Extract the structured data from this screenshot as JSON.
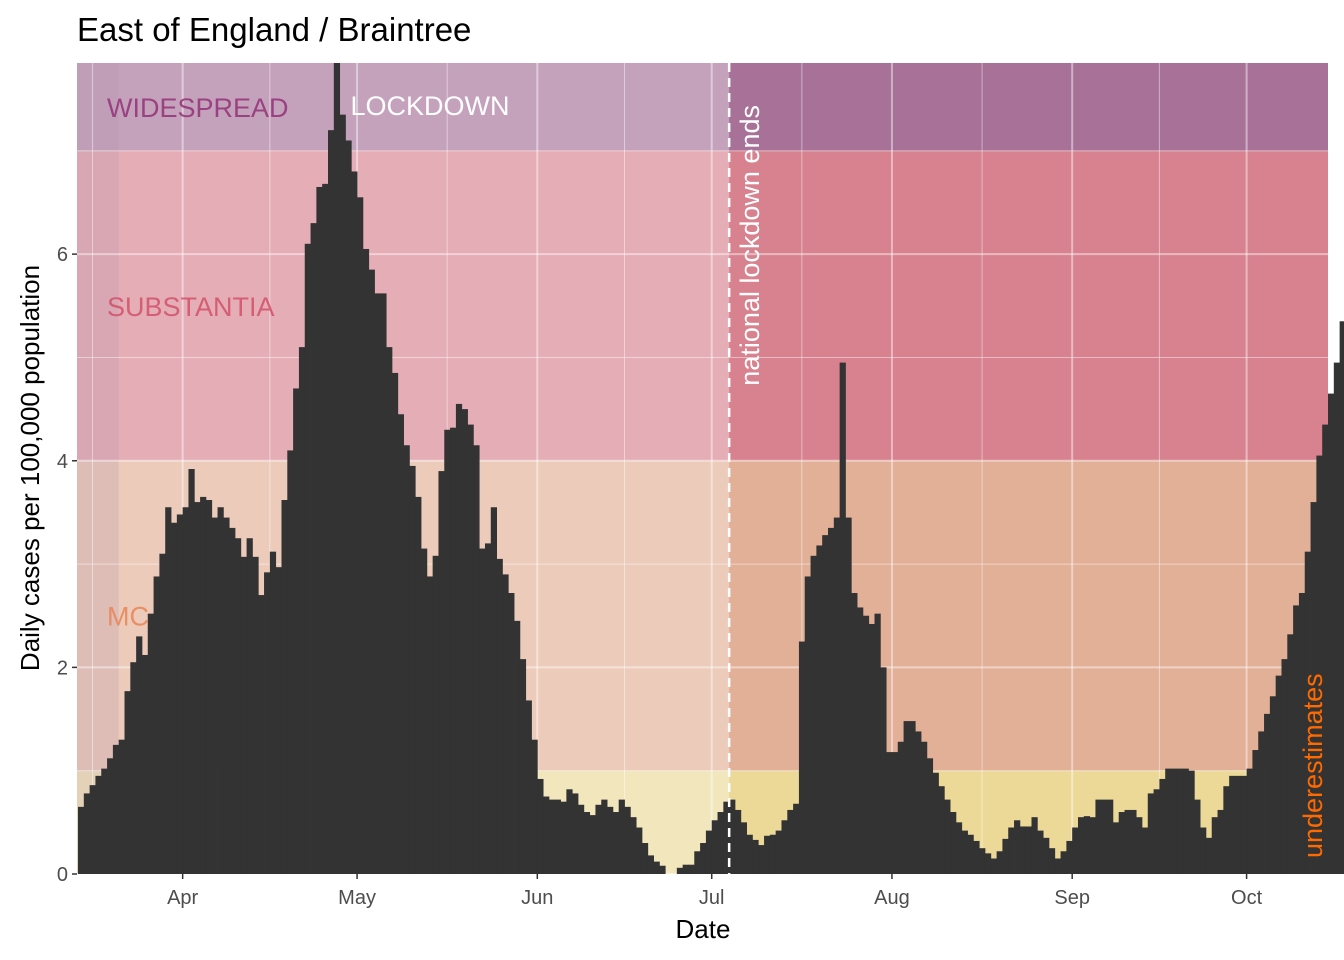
{
  "chart_data": {
    "type": "bar",
    "title": "East of England / Braintree",
    "xlabel": "Date",
    "ylabel": "Daily cases per 100,000 population",
    "ylim": [
      0,
      7.85
    ],
    "xlim": [
      "2020-03-14",
      "2020-10-15"
    ],
    "y_ticks": [
      0,
      2,
      4,
      6
    ],
    "x_ticks": [
      {
        "label": "Apr",
        "date": "2020-04-01"
      },
      {
        "label": "May",
        "date": "2020-05-01"
      },
      {
        "label": "Jun",
        "date": "2020-06-01"
      },
      {
        "label": "Jul",
        "date": "2020-07-01"
      },
      {
        "label": "Aug",
        "date": "2020-08-01"
      },
      {
        "label": "Sep",
        "date": "2020-09-01"
      },
      {
        "label": "Oct",
        "date": "2020-10-01"
      }
    ],
    "grid": true,
    "start_date": "2020-03-14",
    "bar_color": "#333333",
    "values": [
      0.65,
      0.78,
      0.86,
      0.95,
      1.02,
      1.12,
      1.25,
      1.3,
      1.77,
      2.05,
      2.3,
      2.12,
      2.52,
      2.88,
      3.1,
      3.55,
      3.4,
      3.48,
      3.55,
      3.92,
      3.6,
      3.65,
      3.62,
      3.45,
      3.55,
      3.45,
      3.35,
      3.25,
      3.07,
      3.25,
      3.07,
      2.7,
      2.92,
      3.12,
      2.97,
      3.62,
      4.1,
      4.7,
      5.1,
      6.1,
      6.3,
      6.65,
      6.68,
      7.2,
      7.85,
      7.35,
      7.1,
      6.8,
      6.55,
      6.05,
      5.85,
      5.62,
      5.62,
      5.1,
      4.85,
      4.45,
      4.15,
      3.95,
      3.65,
      3.15,
      2.88,
      3.08,
      3.9,
      4.3,
      4.32,
      4.55,
      4.5,
      4.35,
      4.15,
      3.15,
      3.2,
      3.55,
      3.05,
      2.9,
      2.72,
      2.45,
      2.08,
      1.68,
      1.3,
      0.92,
      0.75,
      0.72,
      0.72,
      0.7,
      0.82,
      0.78,
      0.67,
      0.6,
      0.57,
      0.67,
      0.72,
      0.65,
      0.6,
      0.72,
      0.65,
      0.55,
      0.45,
      0.3,
      0.18,
      0.12,
      0.08,
      0.0,
      0.0,
      0.06,
      0.09,
      0.09,
      0.22,
      0.3,
      0.42,
      0.52,
      0.6,
      0.7,
      0.72,
      0.62,
      0.5,
      0.38,
      0.33,
      0.28,
      0.37,
      0.38,
      0.42,
      0.52,
      0.62,
      0.68,
      2.25,
      2.88,
      3.08,
      3.18,
      3.28,
      3.35,
      3.45,
      4.95,
      3.45,
      2.72,
      2.58,
      2.5,
      2.42,
      2.52,
      2.0,
      1.18,
      1.18,
      1.28,
      1.48,
      1.48,
      1.38,
      1.28,
      1.12,
      0.98,
      0.85,
      0.72,
      0.6,
      0.5,
      0.42,
      0.38,
      0.32,
      0.25,
      0.2,
      0.15,
      0.22,
      0.34,
      0.45,
      0.52,
      0.46,
      0.46,
      0.55,
      0.42,
      0.35,
      0.25,
      0.15,
      0.22,
      0.32,
      0.45,
      0.55,
      0.56,
      0.55,
      0.72,
      0.72,
      0.72,
      0.5,
      0.6,
      0.62,
      0.62,
      0.55,
      0.45,
      0.78,
      0.82,
      0.92,
      1.02,
      1.02,
      1.02,
      1.02,
      1.0,
      0.72,
      0.45,
      0.35,
      0.55,
      0.62,
      0.85,
      0.95,
      0.95,
      0.95,
      1.02,
      1.2,
      1.38,
      1.55,
      1.72,
      1.92,
      2.08,
      2.32,
      2.6,
      2.72,
      3.12,
      3.6,
      4.05,
      4.35,
      4.65,
      4.95,
      5.35,
      5.85,
      5.8,
      6.12,
      5.92,
      6.5,
      6.6,
      6.5,
      6.55,
      6.05,
      5.72,
      5.05,
      4.85,
      3.42,
      3.0,
      2.25,
      1.48
    ]
  },
  "bands": [
    {
      "name": "WIDESPREAD",
      "label": "WIDESPREAD",
      "from": 7,
      "to": 7.85,
      "color": "#9b5c8a",
      "text_color": "#8e2a72"
    },
    {
      "name": "SUBSTANTIAL",
      "label": "SUBSTANTIA",
      "from": 4,
      "to": 7,
      "color": "#d4707e",
      "text_color": "#d14a64"
    },
    {
      "name": "MODERATE",
      "label": "MC",
      "from": 1,
      "to": 4,
      "color": "#e0a488",
      "text_color": "#e87f4f"
    },
    {
      "name": "LOW",
      "label": "",
      "from": 0,
      "to": 1,
      "color": "#ecd68a",
      "text_color": "#c9a640"
    }
  ],
  "lockdown": {
    "label": "LOCKDOWN",
    "from": "2020-03-14",
    "to": "2020-07-04",
    "color": "#ffffff"
  },
  "pre_period": {
    "from": "2020-03-14",
    "to": "2020-03-21",
    "color": "#8a5a80"
  },
  "lockdown_end": {
    "label": "national lockdown ends",
    "date": "2020-07-04"
  },
  "underestimates": {
    "label": "underestimates",
    "color": "#ff6a00"
  }
}
